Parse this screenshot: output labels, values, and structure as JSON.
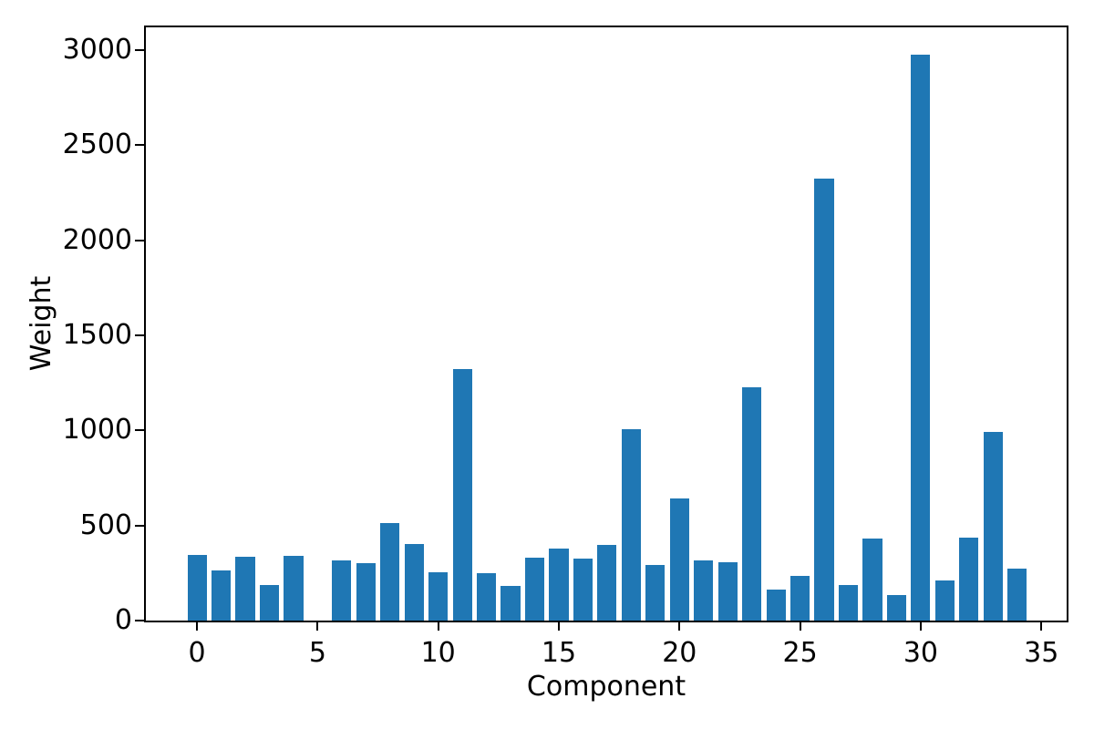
{
  "chart_data": {
    "type": "bar",
    "title": "",
    "xlabel": "Component",
    "ylabel": "Weight",
    "x": [
      0,
      1,
      2,
      3,
      4,
      5,
      6,
      7,
      8,
      9,
      10,
      11,
      12,
      13,
      14,
      15,
      16,
      17,
      18,
      19,
      20,
      21,
      22,
      23,
      24,
      25,
      26,
      27,
      28,
      29,
      30,
      31,
      32,
      33,
      34
    ],
    "values": [
      345,
      265,
      335,
      185,
      340,
      0,
      315,
      300,
      515,
      405,
      255,
      1325,
      250,
      180,
      330,
      380,
      328,
      400,
      1005,
      292,
      640,
      316,
      307,
      1225,
      165,
      235,
      2325,
      188,
      430,
      132,
      2975,
      212,
      437,
      990,
      275
    ],
    "xticks": [
      0,
      5,
      10,
      15,
      20,
      25,
      30,
      35
    ],
    "yticks": [
      0,
      500,
      1000,
      1500,
      2000,
      2500,
      3000
    ],
    "xlim": [
      -2.12,
      36.05
    ],
    "ylim": [
      0,
      3120
    ],
    "bar_width": 0.8,
    "bar_color": "#1f77b4",
    "axis_color": "#000000",
    "grid": false,
    "legend": null
  }
}
